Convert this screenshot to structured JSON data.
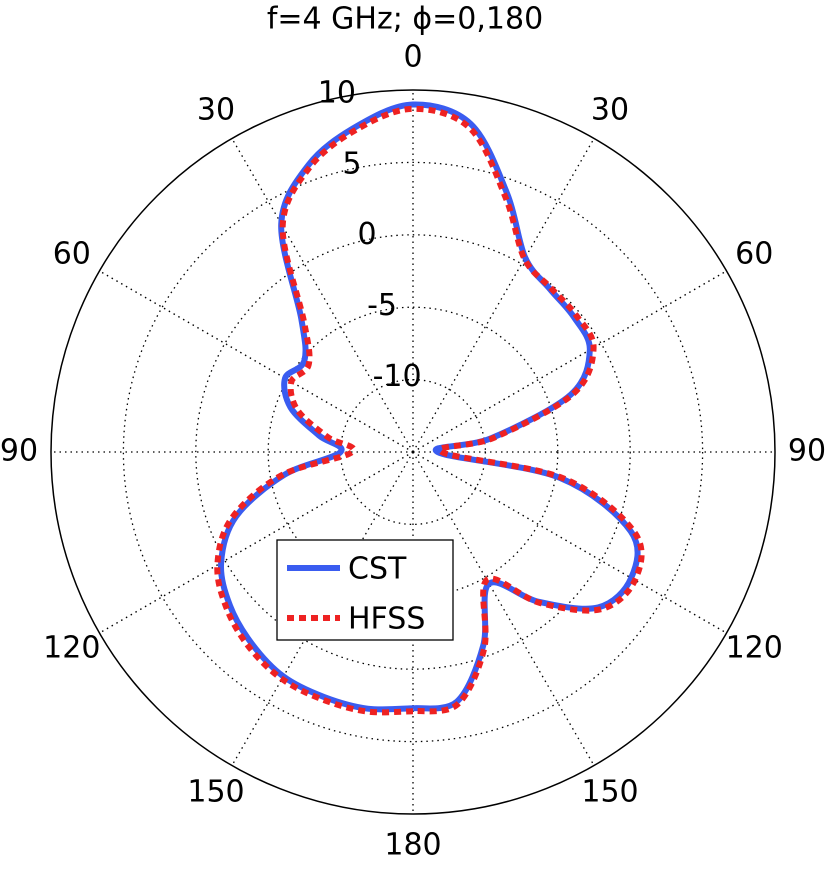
{
  "chart_data": {
    "type": "polar",
    "title": "f=4 GHz;   ϕ=0,180",
    "theta": [
      -180,
      -170,
      -160,
      -150,
      -140,
      -130,
      -120,
      -110,
      -100,
      -90,
      -80,
      -70,
      -60,
      -50,
      -40,
      -30,
      -20,
      -10,
      0,
      10,
      20,
      30,
      40,
      50,
      60,
      70,
      80,
      90,
      100,
      110,
      120,
      130,
      140,
      150,
      160,
      170,
      180
    ],
    "series": [
      {
        "name": "CST",
        "color": "#3a5cf0",
        "dash": false,
        "values": [
          2.7,
          3.0,
          3.0,
          2.9,
          2.3,
          1.5,
          0.3,
          -2.0,
          -6.0,
          -10.0,
          -8.4,
          -6.0,
          -4.8,
          -5.2,
          -3.0,
          3.2,
          6.1,
          7.8,
          9.0,
          8.0,
          4.0,
          0.5,
          -0.3,
          -0.5,
          -0.9,
          -3.4,
          -9.5,
          -13.3,
          -4.7,
          1.0,
          2.4,
          1.7,
          -1.5,
          -4.5,
          -0.8,
          2.5,
          2.7
        ]
      },
      {
        "name": "HFSS",
        "color": "#ee2222",
        "dash": true,
        "values": [
          2.9,
          3.2,
          3.2,
          3.1,
          2.6,
          1.8,
          0.6,
          -1.7,
          -5.8,
          -10.8,
          -9.0,
          -6.5,
          -5.3,
          -5.6,
          -3.3,
          3.0,
          5.9,
          7.6,
          8.7,
          7.7,
          3.7,
          0.4,
          -0.2,
          -0.3,
          -0.6,
          -3.2,
          -9.3,
          -13.0,
          -4.4,
          1.3,
          2.7,
          1.9,
          -1.4,
          -4.8,
          -0.6,
          2.7,
          2.9
        ]
      }
    ],
    "rlim": [
      -15,
      10
    ],
    "rticks": [
      -10,
      -5,
      0,
      5,
      10
    ],
    "thetaticks": [
      0,
      30,
      60,
      90,
      120,
      150,
      180,
      {
        "value": -150,
        "label": "150"
      },
      {
        "value": -120,
        "label": "120"
      },
      {
        "value": -90,
        "label": "90"
      },
      {
        "value": -60,
        "label": "60"
      },
      {
        "value": -30,
        "label": "30"
      }
    ],
    "grid": true
  }
}
